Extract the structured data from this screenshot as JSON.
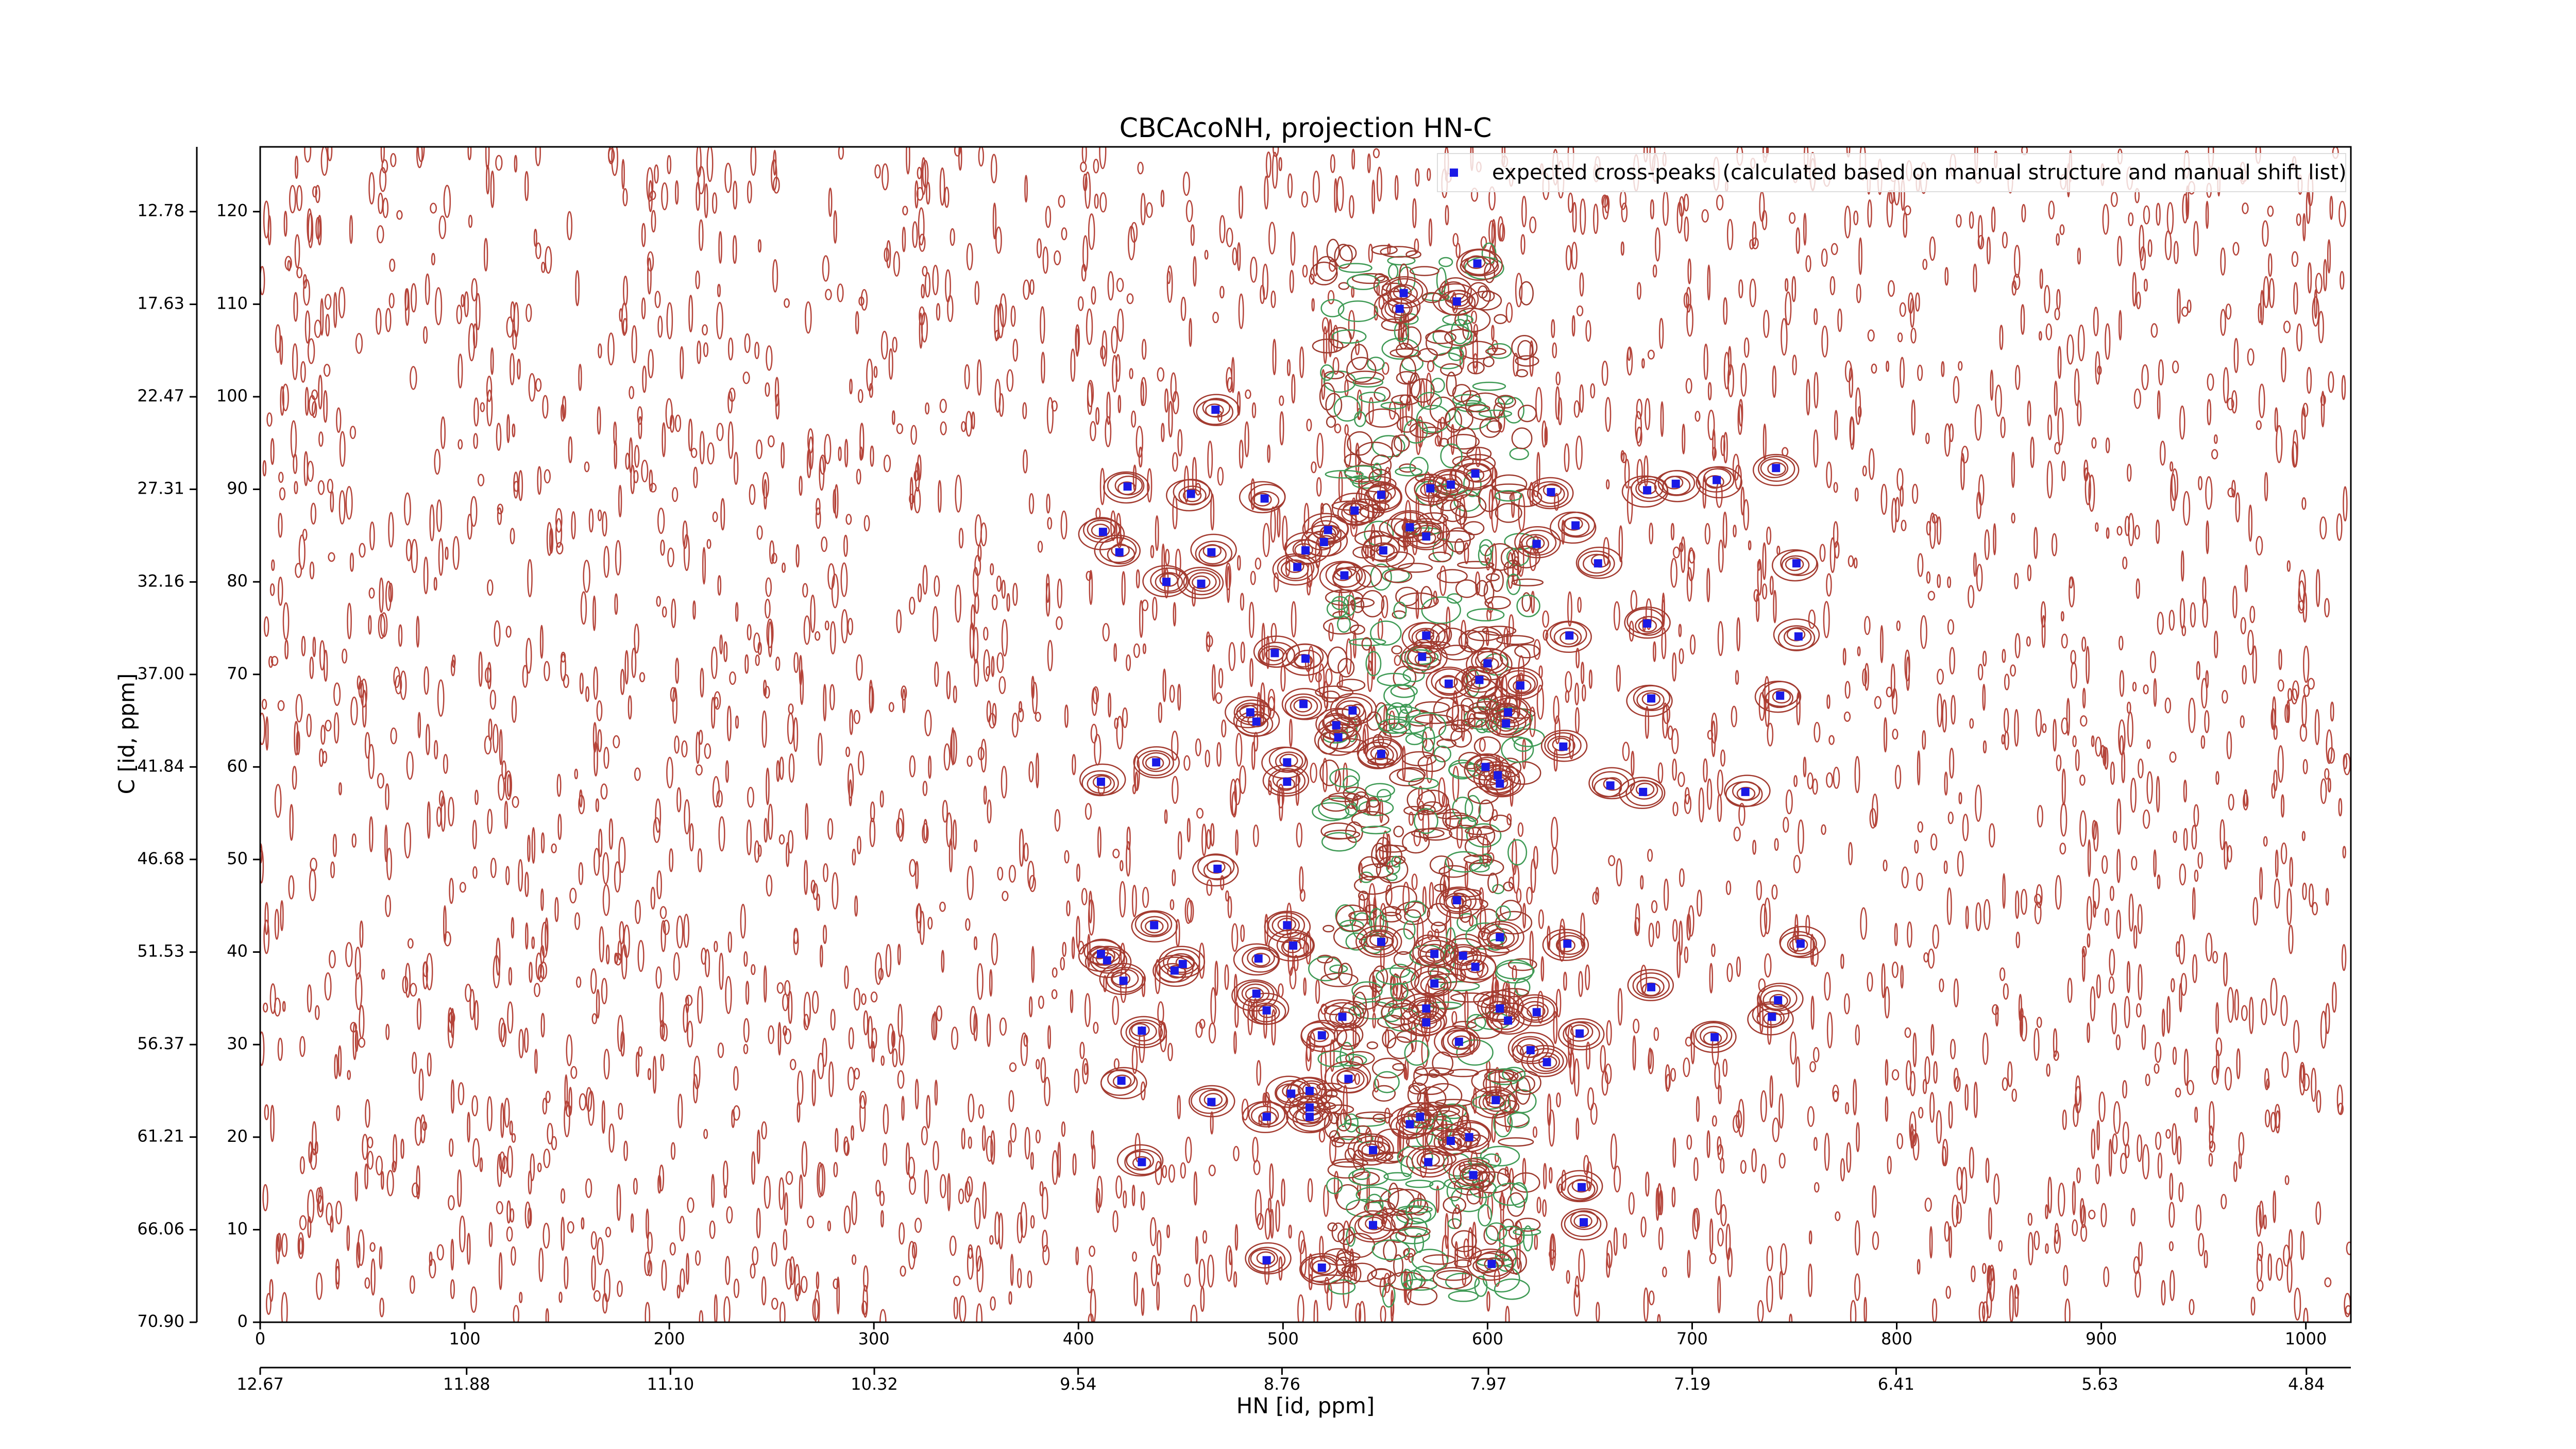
{
  "chart_data": {
    "type": "scatter",
    "title": "CBCAcoNH, projection HN-C",
    "xlabel": "HN [id, ppm]",
    "ylabel": "C [id, ppm]",
    "xlim": [
      0,
      1022
    ],
    "xticks": [
      0,
      100,
      200,
      300,
      400,
      500,
      600,
      700,
      800,
      900,
      1000
    ],
    "x2lim": [
      12.67,
      4.67
    ],
    "x2ticks": [
      12.67,
      11.88,
      {
        "value": 11.1,
        "label": "11.10"
      },
      10.32,
      9.54,
      8.76,
      7.97,
      7.19,
      6.41,
      5.63,
      4.84
    ],
    "ylim": [
      0,
      127
    ],
    "yticks": [
      0,
      10,
      20,
      30,
      40,
      50,
      60,
      70,
      80,
      90,
      100,
      110,
      120
    ],
    "y2lim": [
      70.9,
      9.39
    ],
    "y2ticks": [
      {
        "value": 70.9,
        "label": "70.90"
      },
      66.06,
      61.21,
      56.37,
      51.53,
      46.68,
      41.84,
      {
        "value": 37,
        "label": "37.00"
      },
      32.16,
      27.31,
      22.47,
      17.63,
      12.78
    ],
    "legend": "upper right",
    "series": [
      {
        "name": "expected cross-peaks (calculated based on manual structure and manual shift list)",
        "color": "#1a1ae6",
        "x": [
          595,
          559,
          585,
          557,
          467,
          741,
          712,
          424,
          455,
          491,
          582,
          572,
          594,
          631,
          678,
          548,
          535,
          412,
          420,
          522,
          511,
          520,
          507,
          465,
          443,
          460,
          530,
          562,
          570,
          549,
          643,
          624,
          654,
          751,
          752,
          640,
          570,
          678,
          496,
          511,
          568,
          600,
          581,
          596,
          616,
          743,
          680,
          510,
          484,
          487,
          534,
          526,
          527,
          610,
          609,
          548,
          637,
          502,
          502,
          411,
          438,
          599,
          605,
          606,
          660,
          676,
          726,
          468,
          585,
          437,
          502,
          505,
          411,
          414,
          606,
          639,
          753,
          488,
          548,
          574,
          588,
          594,
          422,
          447,
          451,
          487,
          492,
          574,
          570,
          606,
          610,
          624,
          680,
          742,
          739,
          711,
          431,
          621,
          629,
          645,
          519,
          529,
          532,
          504,
          513,
          570,
          586,
          421,
          465,
          604,
          513,
          562,
          567,
          582,
          591,
          544,
          492,
          513,
          571,
          593,
          431,
          646,
          647,
          544,
          492,
          519,
          602,
          692
        ],
        "values": [
          114.4,
          111.2,
          110.3,
          109.5,
          98.6,
          92.3,
          91.0,
          90.3,
          89.5,
          89.0,
          90.5,
          90.1,
          91.7,
          89.7,
          89.9,
          89.4,
          87.7,
          85.4,
          83.2,
          85.6,
          83.4,
          84.3,
          81.6,
          83.2,
          80.0,
          79.8,
          80.7,
          85.9,
          84.9,
          83.4,
          86.1,
          84.1,
          82.0,
          82.0,
          74.1,
          74.2,
          74.2,
          75.5,
          72.3,
          71.7,
          71.9,
          71.2,
          69.0,
          69.4,
          68.8,
          67.7,
          67.4,
          66.8,
          65.9,
          64.9,
          66.1,
          64.5,
          63.2,
          65.9,
          64.7,
          61.4,
          62.2,
          60.5,
          58.4,
          58.4,
          60.5,
          60.0,
          59.1,
          58.2,
          58.0,
          57.3,
          57.3,
          49.0,
          45.6,
          42.9,
          42.9,
          40.7,
          39.8,
          39.1,
          41.6,
          40.9,
          40.9,
          39.3,
          41.1,
          39.8,
          39.6,
          38.4,
          36.9,
          38.0,
          38.7,
          35.5,
          33.7,
          36.6,
          33.9,
          33.9,
          32.6,
          33.5,
          36.2,
          34.8,
          33.0,
          30.8,
          31.5,
          29.4,
          28.1,
          31.2,
          31.0,
          33.0,
          26.3,
          24.7,
          25.0,
          32.4,
          30.3,
          26.1,
          23.8,
          24.0,
          23.2,
          21.4,
          22.2,
          19.6,
          20.0,
          18.6,
          22.2,
          22.2,
          17.3,
          15.9,
          17.3,
          14.6,
          10.8,
          10.5,
          6.7,
          5.9,
          6.3,
          90.6
        ]
      }
    ]
  }
}
